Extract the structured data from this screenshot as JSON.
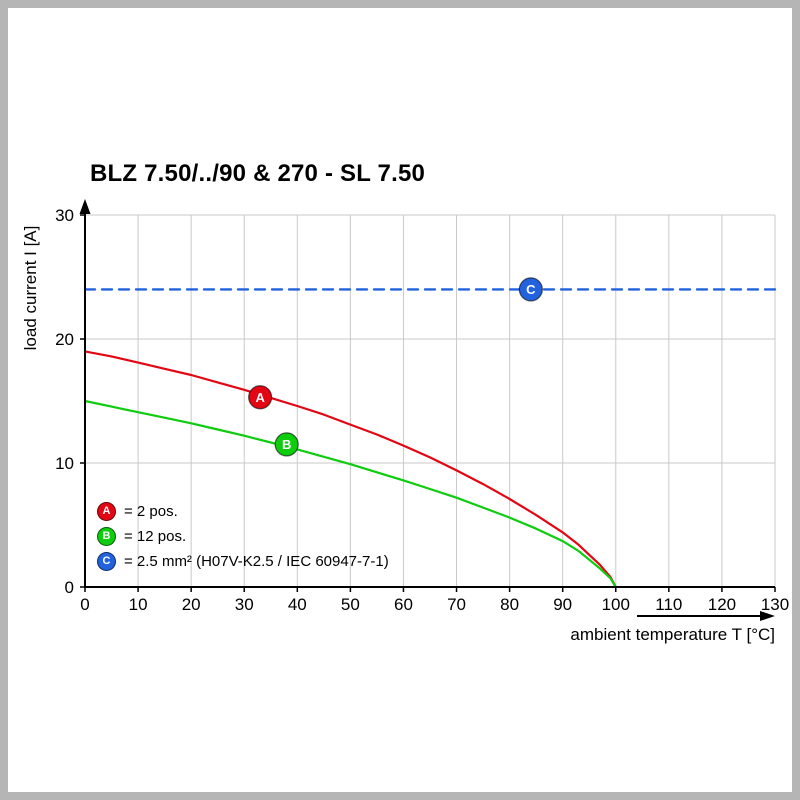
{
  "chart_data": {
    "type": "line",
    "title": "BLZ 7.50/../90 & 270 - SL 7.50",
    "xlabel": "ambient temperature T [°C]",
    "ylabel": "load current I [A]",
    "xlim": [
      0,
      130
    ],
    "ylim": [
      0,
      30
    ],
    "x_ticks": [
      0,
      10,
      20,
      30,
      40,
      50,
      60,
      70,
      80,
      90,
      100,
      110,
      120,
      130
    ],
    "y_ticks": [
      0,
      10,
      20,
      30
    ],
    "grid": true,
    "legend_position": "lower left",
    "axis_color": "#000000",
    "grid_color": "#c9c9c9",
    "series": [
      {
        "name": "A",
        "legend": "= 2 pos.",
        "color": "#e30613",
        "line_style": "solid",
        "marker_at": [
          33,
          15.3
        ],
        "points": [
          [
            0,
            19
          ],
          [
            5,
            18.6
          ],
          [
            10,
            18.1
          ],
          [
            15,
            17.6
          ],
          [
            20,
            17.1
          ],
          [
            25,
            16.5
          ],
          [
            30,
            15.9
          ],
          [
            35,
            15.25
          ],
          [
            40,
            14.6
          ],
          [
            45,
            13.9
          ],
          [
            50,
            13.1
          ],
          [
            55,
            12.3
          ],
          [
            60,
            11.4
          ],
          [
            65,
            10.45
          ],
          [
            70,
            9.4
          ],
          [
            75,
            8.3
          ],
          [
            80,
            7.1
          ],
          [
            85,
            5.8
          ],
          [
            90,
            4.4
          ],
          [
            93,
            3.4
          ],
          [
            95,
            2.6
          ],
          [
            97,
            1.8
          ],
          [
            99,
            0.8
          ],
          [
            100,
            0
          ]
        ]
      },
      {
        "name": "B",
        "legend": "= 12 pos.",
        "color": "#0ecc0e",
        "line_style": "solid",
        "marker_at": [
          38,
          11.5
        ],
        "points": [
          [
            0,
            15
          ],
          [
            5,
            14.55
          ],
          [
            10,
            14.1
          ],
          [
            15,
            13.65
          ],
          [
            20,
            13.2
          ],
          [
            25,
            12.7
          ],
          [
            30,
            12.2
          ],
          [
            35,
            11.65
          ],
          [
            40,
            11.1
          ],
          [
            45,
            10.5
          ],
          [
            50,
            9.9
          ],
          [
            55,
            9.25
          ],
          [
            60,
            8.6
          ],
          [
            65,
            7.9
          ],
          [
            70,
            7.2
          ],
          [
            75,
            6.4
          ],
          [
            80,
            5.6
          ],
          [
            85,
            4.7
          ],
          [
            90,
            3.7
          ],
          [
            93,
            2.9
          ],
          [
            95,
            2.2
          ],
          [
            97,
            1.5
          ],
          [
            99,
            0.7
          ],
          [
            100,
            0
          ]
        ]
      },
      {
        "name": "C",
        "legend": "= 2.5 mm² (H07V-K2.5 / IEC 60947-7-1)",
        "color": "#2262dd",
        "line_style": "dashed",
        "marker_at": [
          84,
          24
        ],
        "points": [
          [
            0,
            24
          ],
          [
            130,
            24
          ]
        ]
      }
    ]
  }
}
